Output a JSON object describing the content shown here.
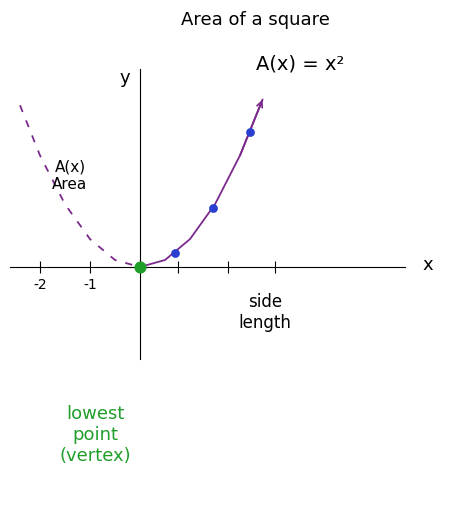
{
  "chart_data": {
    "type": "line",
    "title": "Area of a square",
    "subtitle": "A(x) = x²",
    "x_axis_name": "x",
    "y_axis_name": "y",
    "x_label": "side\nlength",
    "y_label": "A(x)\nArea",
    "annotation": "lowest\npoint\n(vertex)",
    "series": [
      {
        "type": "line",
        "color": "#7b2a8c",
        "line_style": "solid",
        "x": [
          0,
          0.5,
          1,
          1.5,
          2,
          2.45
        ],
        "values": [
          0,
          0.25,
          1,
          2.25,
          4,
          6.0
        ]
      },
      {
        "type": "line",
        "color": "#7b2a8c",
        "line_style": "dashed",
        "x": [
          -2.4,
          -2,
          -1.5,
          -1,
          -0.5,
          0
        ],
        "values": [
          5.8,
          4,
          2.25,
          1,
          0.25,
          0
        ]
      },
      {
        "type": "scatter",
        "color": "#2a3fd0",
        "marker": "circle",
        "x": [
          0.7,
          1.45,
          2.2
        ],
        "values": [
          0.49,
          2.1,
          4.84
        ]
      },
      {
        "type": "scatter",
        "color": "#1f9e2a",
        "marker": "circle",
        "x": [
          0
        ],
        "values": [
          0
        ]
      }
    ],
    "xlim": [
      -2.6,
      5.3
    ],
    "ylim": [
      -3.3,
      7.1
    ],
    "xticks": [
      -2,
      -1,
      {
        "value": 0.75,
        "label": null
      },
      {
        "value": 1.75,
        "label": null
      },
      {
        "value": 2.7,
        "label": null
      }
    ],
    "yticks": [],
    "tick_labels": "x"
  }
}
